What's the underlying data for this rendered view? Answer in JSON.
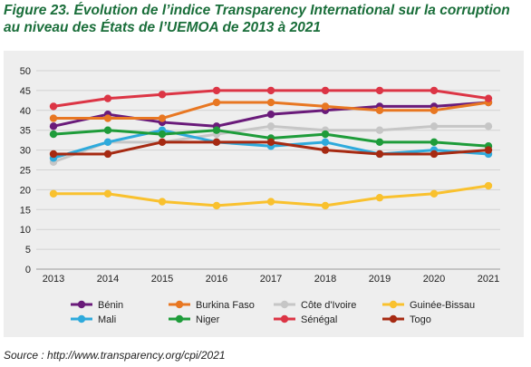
{
  "title": "Figure 23. Évolution de l’indice Transparency International sur la corruption au niveau des États de l’UEMOA de 2013 à 2021",
  "source": "Source : http://www.transparency.org/cpi/2021",
  "chart_data": {
    "type": "line",
    "title": "",
    "xlabel": "",
    "ylabel": "",
    "x": [
      "2013",
      "2014",
      "2015",
      "2016",
      "2017",
      "2018",
      "2019",
      "2020",
      "2021"
    ],
    "ylim": [
      0,
      50
    ],
    "yticks": [
      "0",
      "5",
      "10",
      "15",
      "20",
      "25",
      "30",
      "35",
      "40",
      "45",
      "50"
    ],
    "grid": "horizontal",
    "legend_position": "bottom",
    "series": [
      {
        "name": "Bénin",
        "color": "#6a1b7a",
        "values": [
          36,
          39,
          37,
          36,
          39,
          40,
          41,
          41,
          42
        ]
      },
      {
        "name": "Burkina Faso",
        "color": "#e87722",
        "values": [
          38,
          38,
          38,
          42,
          42,
          41,
          40,
          40,
          42
        ]
      },
      {
        "name": "Côte d'Ivoire",
        "color": "#c6c6c6",
        "values": [
          27,
          32,
          32,
          34,
          36,
          35,
          35,
          36,
          36
        ]
      },
      {
        "name": "Guinée-Bissau",
        "color": "#f9c12e",
        "values": [
          19,
          19,
          17,
          16,
          17,
          16,
          18,
          19,
          21
        ]
      },
      {
        "name": "Mali",
        "color": "#2eaadc",
        "values": [
          28,
          32,
          35,
          32,
          31,
          32,
          29,
          30,
          29
        ]
      },
      {
        "name": "Niger",
        "color": "#1e9c3a",
        "values": [
          34,
          35,
          34,
          35,
          33,
          34,
          32,
          32,
          31
        ]
      },
      {
        "name": "Sénégal",
        "color": "#dc3545",
        "values": [
          41,
          43,
          44,
          45,
          45,
          45,
          45,
          45,
          43
        ]
      },
      {
        "name": "Togo",
        "color": "#a62a12",
        "values": [
          29,
          29,
          32,
          32,
          32,
          30,
          29,
          29,
          30
        ]
      }
    ]
  }
}
